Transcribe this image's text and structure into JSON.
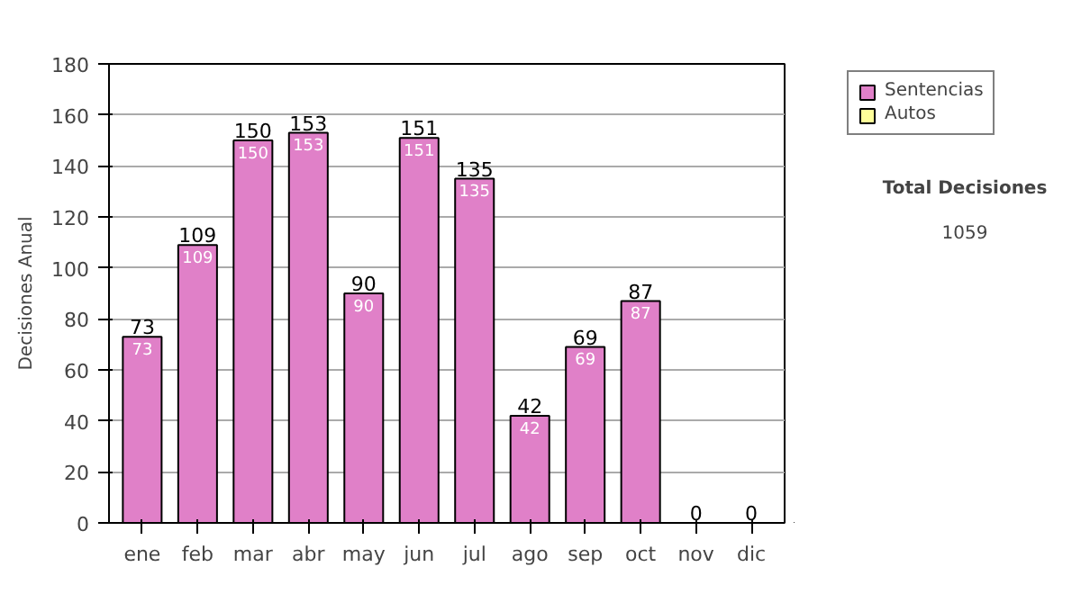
{
  "chart_data": {
    "type": "bar",
    "stacked": true,
    "ylabel": "Decisiones Anual",
    "categories": [
      "ene",
      "feb",
      "mar",
      "abr",
      "may",
      "jun",
      "jul",
      "ago",
      "sep",
      "oct",
      "nov",
      "dic"
    ],
    "series": [
      {
        "name": "Sentencias",
        "color": "#e080c8",
        "values": [
          73,
          109,
          150,
          153,
          90,
          151,
          135,
          42,
          69,
          87,
          0,
          0
        ],
        "value_labels": [
          "73",
          "109",
          "150",
          "153",
          "90",
          "151",
          "135",
          "42",
          "69",
          "87",
          null,
          null
        ]
      },
      {
        "name": "Autos",
        "color": "#ffff99",
        "values": [
          null,
          null,
          null,
          null,
          null,
          null,
          null,
          null,
          null,
          null,
          null,
          null
        ]
      }
    ],
    "totals": [
      "73",
      "109",
      "150",
      "153",
      "90",
      "151",
      "135",
      "42",
      "69",
      "87",
      "0",
      "0"
    ],
    "ylim": [
      0,
      180
    ],
    "yticks": [
      0,
      20,
      40,
      60,
      80,
      100,
      120,
      140,
      160,
      180
    ],
    "grid": "y",
    "legend": "right",
    "annotations": [
      "Total Decisiones",
      "1059"
    ]
  }
}
